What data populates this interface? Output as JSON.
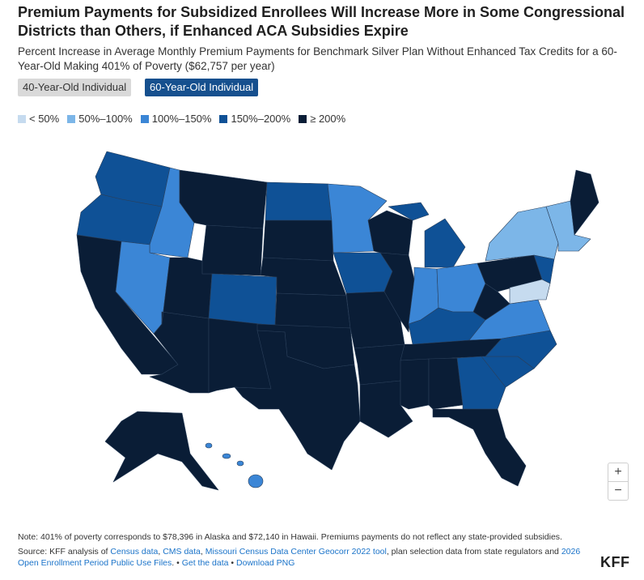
{
  "title": "Premium Payments for Subsidized Enrollees Will Increase More in Some Congressional Districts than Others, if Enhanced ACA Subsidies Expire",
  "subtitle": "Percent Increase in Average Monthly Premium Payments for Benchmark Silver Plan Without Enhanced Tax Credits for a 60-Year-Old Making 401% of Poverty ($62,757 per year)",
  "toggles": {
    "option_a": "40-Year-Old Individual",
    "option_b": "60-Year-Old Individual",
    "selected": "60-Year-Old Individual"
  },
  "legend": [
    {
      "label": "< 50%",
      "color": "#c6dbef"
    },
    {
      "label": "50%–100%",
      "color": "#7cb6e8"
    },
    {
      "label": "100%–150%",
      "color": "#3b86d6"
    },
    {
      "label": "150%–200%",
      "color": "#0f5196"
    },
    {
      "label": "≥ 200%",
      "color": "#0a1d36"
    }
  ],
  "zoom": {
    "in": "+",
    "out": "−"
  },
  "note": "Note: 401% of poverty corresponds to $78,396 in Alaska and $72,140 in Hawaii. Premiums payments do not reflect any state-provided subsidies.",
  "source": {
    "prefix": "Source: KFF analysis of ",
    "link1": "Census data",
    "sep1": ", ",
    "link2": "CMS data",
    "sep2": ", ",
    "link3": "Missouri Census Data Center Geocorr 2022 tool",
    "mid": ", plan selection data from state regulators and ",
    "link4": "2026 Open Enrollment Period Public Use Files",
    "sep3": ". • ",
    "link5": "Get the data",
    "sep4": " • ",
    "link6": "Download PNG"
  },
  "logo": "KFF",
  "map_regions": [
    {
      "name": "washington",
      "level": 4
    },
    {
      "name": "oregon",
      "level": 4
    },
    {
      "name": "california",
      "level": 5
    },
    {
      "name": "idaho",
      "level": 3
    },
    {
      "name": "nevada",
      "level": 3
    },
    {
      "name": "arizona",
      "level": 5
    },
    {
      "name": "utah",
      "level": 5
    },
    {
      "name": "montana",
      "level": 5
    },
    {
      "name": "wyoming",
      "level": 5
    },
    {
      "name": "colorado",
      "level": 4
    },
    {
      "name": "new-mexico",
      "level": 5
    },
    {
      "name": "north-dakota",
      "level": 4
    },
    {
      "name": "south-dakota",
      "level": 5
    },
    {
      "name": "nebraska",
      "level": 5
    },
    {
      "name": "kansas",
      "level": 5
    },
    {
      "name": "oklahoma",
      "level": 5
    },
    {
      "name": "texas",
      "level": 5
    },
    {
      "name": "minnesota",
      "level": 3
    },
    {
      "name": "iowa",
      "level": 4
    },
    {
      "name": "missouri",
      "level": 5
    },
    {
      "name": "arkansas",
      "level": 5
    },
    {
      "name": "louisiana",
      "level": 5
    },
    {
      "name": "wisconsin",
      "level": 5
    },
    {
      "name": "illinois",
      "level": 5
    },
    {
      "name": "michigan",
      "level": 4
    },
    {
      "name": "indiana",
      "level": 3
    },
    {
      "name": "ohio",
      "level": 3
    },
    {
      "name": "kentucky",
      "level": 4
    },
    {
      "name": "tennessee",
      "level": 5
    },
    {
      "name": "mississippi",
      "level": 5
    },
    {
      "name": "alabama",
      "level": 5
    },
    {
      "name": "georgia",
      "level": 4
    },
    {
      "name": "florida",
      "level": 5
    },
    {
      "name": "south-carolina",
      "level": 4
    },
    {
      "name": "north-carolina",
      "level": 4
    },
    {
      "name": "virginia",
      "level": 3
    },
    {
      "name": "west-virginia",
      "level": 5
    },
    {
      "name": "pennsylvania",
      "level": 5
    },
    {
      "name": "new-york",
      "level": 2
    },
    {
      "name": "new-england",
      "level": 2
    },
    {
      "name": "maine",
      "level": 5
    },
    {
      "name": "new-jersey",
      "level": 4
    },
    {
      "name": "maryland",
      "level": 1
    },
    {
      "name": "alaska",
      "level": 5
    },
    {
      "name": "hawaii",
      "level": 3
    }
  ]
}
